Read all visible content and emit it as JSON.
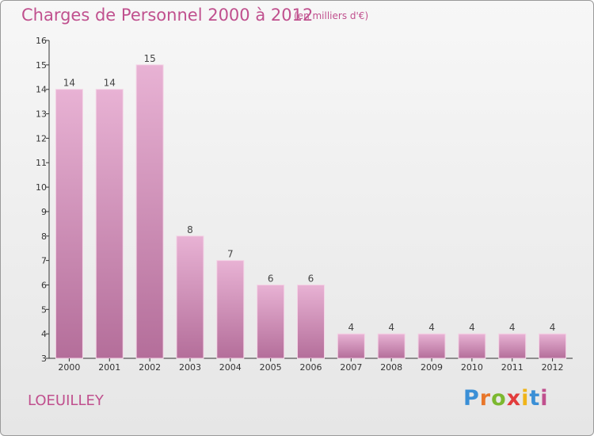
{
  "header": {
    "title": "Charges de Personnel 2000 à 2012",
    "subtitle": "(en milliers d'€)"
  },
  "footer": {
    "commune": "LOEUILLEY",
    "logo_letters": [
      "P",
      "r",
      "o",
      "x",
      "i",
      "t",
      "i"
    ],
    "logo_colors": [
      "#3a8fd6",
      "#e8762a",
      "#7cb82f",
      "#e23c3c",
      "#f0b419",
      "#3a8fd6",
      "#c0508e"
    ]
  },
  "colors": {
    "accent": "#c0508e",
    "bar_fill_light": "#e8b2d4",
    "bar_fill_dark": "#b46e9a",
    "bar_highlight": "#f4d3e6"
  },
  "chart_data": {
    "type": "bar",
    "title": "Charges de Personnel 2000 à 2012",
    "subtitle": "(en milliers d'€)",
    "categories": [
      "2000",
      "2001",
      "2002",
      "2003",
      "2004",
      "2005",
      "2006",
      "2007",
      "2008",
      "2009",
      "2010",
      "2011",
      "2012"
    ],
    "values": [
      14,
      14,
      15,
      8,
      7,
      6,
      6,
      4,
      4,
      4,
      4,
      4,
      4
    ],
    "ylim": [
      3,
      16
    ],
    "yticks": [
      "3",
      "4",
      "5",
      "6",
      "7",
      "8",
      "9",
      "10",
      "11",
      "12",
      "13",
      "14",
      "15",
      "16"
    ],
    "grid": false
  }
}
